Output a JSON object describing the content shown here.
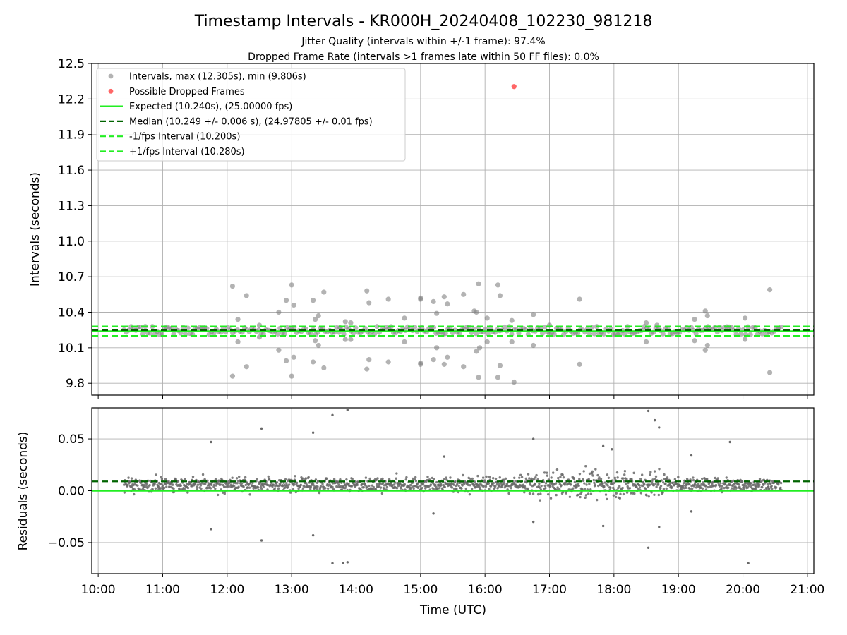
{
  "title": "Timestamp Intervals - KR000H_20240408_102230_981218",
  "subtitle_lines": [
    "Jitter Quality (intervals within +/-1 frame): 97.4%",
    "Dropped Frame Rate (intervals >1 frames late within 50 FF files): 0.0%"
  ],
  "colors": {
    "intervals": "#808080",
    "dropped": "#ff0000",
    "expected": "#22ee22",
    "median": "#006400",
    "bounds": "#22ee22",
    "residuals": "#696969"
  },
  "chart_data": [
    {
      "type": "scatter",
      "ylabel": "Intervals (seconds)",
      "xlim": [
        "09:54",
        "21:06"
      ],
      "ylim": [
        9.7,
        12.5
      ],
      "yticks": [
        "9.8",
        "10.1",
        "10.4",
        "10.7",
        "11.0",
        "11.3",
        "11.6",
        "11.9",
        "12.2",
        "12.5"
      ],
      "grid": true,
      "legend_position": "top-left",
      "legend": [
        "Intervals, max (12.305s), min (9.806s)",
        "Possible Dropped Frames",
        "Expected (10.240s), (25.00000 fps)",
        "Median (10.249 +/- 0.006 s), (24.97805 +/- 0.01 fps)",
        "-1/fps Interval (10.200s)",
        "+1/fps Interval (10.280s)"
      ],
      "reference_lines": {
        "expected": 10.24,
        "median": 10.249,
        "minus_1fps": 10.2,
        "plus_1fps": 10.28
      },
      "series": [
        {
          "name": "Intervals, max (12.305s), min (9.806s)",
          "baseline_band": [
            10.21,
            10.28
          ],
          "baseline_time_range": [
            "10:24",
            "20:36"
          ],
          "points": [
            [
              "12:05",
              10.62
            ],
            [
              "12:05",
              9.86
            ],
            [
              "12:10",
              10.34
            ],
            [
              "12:10",
              10.15
            ],
            [
              "12:18",
              10.54
            ],
            [
              "12:18",
              9.94
            ],
            [
              "12:30",
              10.29
            ],
            [
              "12:30",
              10.19
            ],
            [
              "12:48",
              10.4
            ],
            [
              "12:48",
              10.08
            ],
            [
              "12:55",
              10.5
            ],
            [
              "12:55",
              9.99
            ],
            [
              "13:00",
              10.63
            ],
            [
              "13:00",
              9.86
            ],
            [
              "13:02",
              10.46
            ],
            [
              "13:02",
              10.02
            ],
            [
              "13:20",
              10.5
            ],
            [
              "13:20",
              9.98
            ],
            [
              "13:22",
              10.34
            ],
            [
              "13:25",
              10.37
            ],
            [
              "13:25",
              10.12
            ],
            [
              "13:22",
              10.16
            ],
            [
              "13:30",
              10.57
            ],
            [
              "13:30",
              9.93
            ],
            [
              "13:45",
              10.27
            ],
            [
              "13:50",
              10.32
            ],
            [
              "13:50",
              10.17
            ],
            [
              "13:55",
              10.31
            ],
            [
              "13:55",
              10.17
            ],
            [
              "14:10",
              10.58
            ],
            [
              "14:10",
              9.92
            ],
            [
              "14:12",
              10.48
            ],
            [
              "14:12",
              10.0
            ],
            [
              "14:30",
              10.51
            ],
            [
              "14:30",
              9.98
            ],
            [
              "14:45",
              10.35
            ],
            [
              "14:45",
              10.15
            ],
            [
              "15:00",
              10.52
            ],
            [
              "15:00",
              10.51
            ],
            [
              "15:00",
              9.97
            ],
            [
              "15:00",
              9.96
            ],
            [
              "15:12",
              10.49
            ],
            [
              "15:12",
              10.0
            ],
            [
              "15:15",
              10.39
            ],
            [
              "15:15",
              10.1
            ],
            [
              "15:22",
              10.53
            ],
            [
              "15:22",
              9.96
            ],
            [
              "15:25",
              10.47
            ],
            [
              "15:25",
              10.02
            ],
            [
              "15:40",
              10.55
            ],
            [
              "15:40",
              9.94
            ],
            [
              "15:50",
              10.41
            ],
            [
              "15:52",
              10.4
            ],
            [
              "15:52",
              10.07
            ],
            [
              "15:54",
              10.64
            ],
            [
              "15:54",
              9.85
            ],
            [
              "15:55",
              10.1
            ],
            [
              "16:02",
              10.35
            ],
            [
              "16:02",
              10.15
            ],
            [
              "16:12",
              10.63
            ],
            [
              "16:12",
              9.85
            ],
            [
              "16:14",
              10.54
            ],
            [
              "16:14",
              9.95
            ],
            [
              "16:25",
              10.33
            ],
            [
              "16:25",
              10.15
            ],
            [
              "16:27",
              9.81
            ],
            [
              "16:45",
              10.38
            ],
            [
              "16:45",
              10.12
            ],
            [
              "17:00",
              10.29
            ],
            [
              "17:28",
              10.51
            ],
            [
              "17:28",
              9.96
            ],
            [
              "18:30",
              10.31
            ],
            [
              "18:30",
              10.15
            ],
            [
              "18:40",
              10.29
            ],
            [
              "19:15",
              10.34
            ],
            [
              "19:15",
              10.16
            ],
            [
              "19:25",
              10.41
            ],
            [
              "19:25",
              10.08
            ],
            [
              "19:27",
              10.37
            ],
            [
              "19:27",
              10.12
            ],
            [
              "20:02",
              10.35
            ],
            [
              "20:02",
              10.17
            ],
            [
              "20:25",
              10.59
            ],
            [
              "20:25",
              9.89
            ]
          ]
        },
        {
          "name": "Possible Dropped Frames",
          "points": [
            [
              "16:27",
              12.305
            ]
          ]
        }
      ]
    },
    {
      "type": "scatter",
      "xlabel": "Time (UTC)",
      "ylabel": "Residuals (seconds)",
      "xlim": [
        "09:54",
        "21:06"
      ],
      "ylim": [
        -0.08,
        0.08
      ],
      "yticks": [
        "−0.05",
        "0.00",
        "0.05"
      ],
      "xticks": [
        "10:00",
        "11:00",
        "12:00",
        "13:00",
        "14:00",
        "15:00",
        "16:00",
        "17:00",
        "18:00",
        "19:00",
        "20:00",
        "21:00"
      ],
      "grid": true,
      "reference_lines": {
        "expected": 0.0,
        "median": 0.009
      },
      "series": [
        {
          "name": "Residuals",
          "time_range": [
            "10:24",
            "20:36"
          ],
          "center": 0.006,
          "typical_spread": 0.006,
          "outliers": [
            [
              "12:32",
              0.06
            ],
            [
              "12:32",
              -0.048
            ],
            [
              "11:45",
              0.047
            ],
            [
              "11:45",
              -0.037
            ],
            [
              "13:20",
              0.056
            ],
            [
              "13:20",
              -0.043
            ],
            [
              "13:38",
              0.073
            ],
            [
              "13:38",
              -0.07
            ],
            [
              "13:48",
              -0.07
            ],
            [
              "13:52",
              -0.069
            ],
            [
              "13:52",
              0.078
            ],
            [
              "16:45",
              0.05
            ],
            [
              "16:45",
              -0.03
            ],
            [
              "18:32",
              0.077
            ],
            [
              "18:32",
              -0.055
            ],
            [
              "18:38",
              0.068
            ],
            [
              "18:42",
              0.061
            ],
            [
              "18:42",
              -0.035
            ],
            [
              "20:05",
              -0.07
            ],
            [
              "19:48",
              0.047
            ],
            [
              "17:50",
              0.043
            ],
            [
              "17:50",
              -0.034
            ],
            [
              "17:58",
              0.04
            ],
            [
              "15:12",
              -0.022
            ],
            [
              "15:22",
              0.033
            ],
            [
              "19:12",
              0.034
            ],
            [
              "19:12",
              -0.02
            ]
          ]
        }
      ]
    }
  ]
}
